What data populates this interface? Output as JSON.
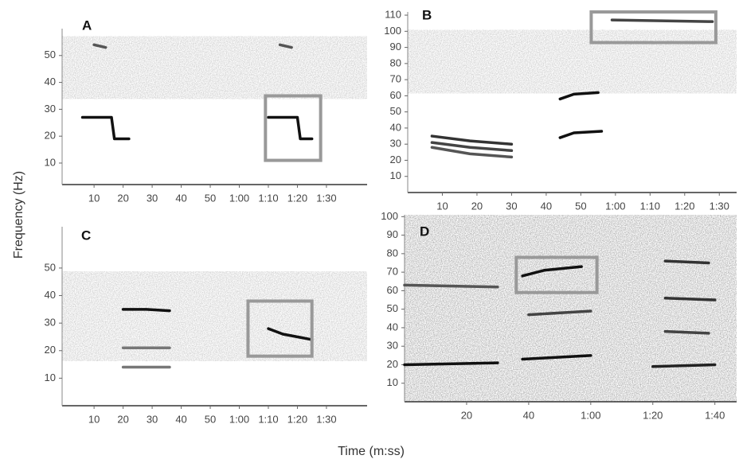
{
  "xlabel": "Time (m:ss)",
  "ylabel": "Frequency (Hz)",
  "chart_data": [
    {
      "type": "spectrogram",
      "title": "A",
      "xlim": [
        -1,
        104
      ],
      "ylim": [
        2,
        60
      ],
      "xticks": [
        10,
        20,
        30,
        40,
        50,
        {
          "value": 60,
          "label": "1:00"
        },
        {
          "value": 70,
          "label": "1:10"
        },
        {
          "value": 80,
          "label": "1:20"
        },
        {
          "value": 90,
          "label": "1:30"
        }
      ],
      "yticks": [
        10,
        20,
        30,
        40,
        50
      ],
      "series": [
        {
          "color": "#111",
          "x": [
            6,
            16,
            17,
            22
          ],
          "values": [
            27,
            27,
            19,
            19
          ]
        },
        {
          "color": "#111",
          "x": [
            70,
            80,
            81,
            85
          ],
          "values": [
            27,
            27,
            19,
            19
          ]
        },
        {
          "color": "#555",
          "x": [
            10,
            14
          ],
          "values": [
            54,
            53
          ]
        },
        {
          "color": "#555",
          "x": [
            74,
            78
          ],
          "values": [
            54,
            53
          ]
        }
      ],
      "highlight": {
        "x": [
          69,
          88
        ],
        "y": [
          11,
          35
        ]
      }
    },
    {
      "type": "spectrogram",
      "title": "B",
      "xlim": [
        0,
        95
      ],
      "ylim": [
        0,
        112
      ],
      "xticks": [
        10,
        20,
        30,
        40,
        50,
        {
          "value": 60,
          "label": "1:00"
        },
        {
          "value": 70,
          "label": "1:10"
        },
        {
          "value": 80,
          "label": "1:20"
        },
        {
          "value": 90,
          "label": "1:30"
        }
      ],
      "yticks": [
        10,
        20,
        30,
        40,
        50,
        60,
        70,
        80,
        90,
        100,
        110
      ],
      "series": [
        {
          "color": "#333",
          "x": [
            7,
            18,
            30
          ],
          "values": [
            35,
            32,
            30
          ]
        },
        {
          "color": "#444",
          "x": [
            7,
            18,
            30
          ],
          "values": [
            31,
            28,
            26
          ]
        },
        {
          "color": "#555",
          "x": [
            7,
            18,
            30
          ],
          "values": [
            28,
            24,
            22
          ]
        },
        {
          "color": "#111",
          "x": [
            44,
            48,
            55
          ],
          "values": [
            58,
            61,
            62
          ]
        },
        {
          "color": "#111",
          "x": [
            44,
            48,
            56
          ],
          "values": [
            34,
            37,
            38
          ]
        },
        {
          "color": "#444",
          "x": [
            59,
            88
          ],
          "values": [
            107,
            106
          ]
        }
      ],
      "highlight": {
        "x": [
          53,
          89
        ],
        "y": [
          93,
          112
        ]
      }
    },
    {
      "type": "spectrogram",
      "title": "C",
      "xlim": [
        -1,
        104
      ],
      "ylim": [
        0,
        65
      ],
      "xticks": [
        10,
        20,
        30,
        40,
        50,
        {
          "value": 60,
          "label": "1:00"
        },
        {
          "value": 70,
          "label": "1:10"
        },
        {
          "value": 80,
          "label": "1:20"
        },
        {
          "value": 90,
          "label": "1:30"
        }
      ],
      "yticks": [
        10,
        20,
        30,
        40,
        50
      ],
      "series": [
        {
          "color": "#111",
          "x": [
            20,
            28,
            36
          ],
          "values": [
            35,
            35,
            34.5
          ]
        },
        {
          "color": "#777",
          "x": [
            20,
            36
          ],
          "values": [
            21,
            21
          ]
        },
        {
          "color": "#777",
          "x": [
            20,
            36
          ],
          "values": [
            14,
            14
          ]
        },
        {
          "color": "#111",
          "x": [
            70,
            75,
            85
          ],
          "values": [
            28,
            26,
            24
          ]
        }
      ],
      "highlight": {
        "x": [
          63,
          85
        ],
        "y": [
          18,
          38
        ]
      }
    },
    {
      "type": "spectrogram",
      "title": "D",
      "xlim": [
        0,
        107
      ],
      "ylim": [
        0,
        101
      ],
      "xticks": [
        20,
        40,
        {
          "value": 60,
          "label": "1:00"
        },
        {
          "value": 80,
          "label": "1:20"
        },
        {
          "value": 100,
          "label": "1:40"
        }
      ],
      "yticks": [
        10,
        20,
        30,
        40,
        50,
        60,
        70,
        80,
        90,
        100
      ],
      "series": [
        {
          "color": "#111",
          "x": [
            0,
            30
          ],
          "values": [
            20,
            21
          ]
        },
        {
          "color": "#111",
          "x": [
            38,
            60
          ],
          "values": [
            23,
            25
          ]
        },
        {
          "color": "#222",
          "x": [
            80,
            100
          ],
          "values": [
            19,
            20
          ]
        },
        {
          "color": "#111",
          "x": [
            38,
            45,
            57
          ],
          "values": [
            68,
            71,
            73
          ]
        },
        {
          "color": "#444",
          "x": [
            40,
            60
          ],
          "values": [
            47,
            49
          ]
        },
        {
          "color": "#555",
          "x": [
            0,
            30
          ],
          "values": [
            63,
            62
          ]
        },
        {
          "color": "#333",
          "x": [
            84,
            98
          ],
          "values": [
            76,
            75
          ]
        },
        {
          "color": "#333",
          "x": [
            84,
            100
          ],
          "values": [
            56,
            55
          ]
        },
        {
          "color": "#444",
          "x": [
            84,
            98
          ],
          "values": [
            38,
            37
          ]
        }
      ],
      "highlight": {
        "x": [
          36,
          62
        ],
        "y": [
          59,
          78
        ]
      }
    }
  ]
}
